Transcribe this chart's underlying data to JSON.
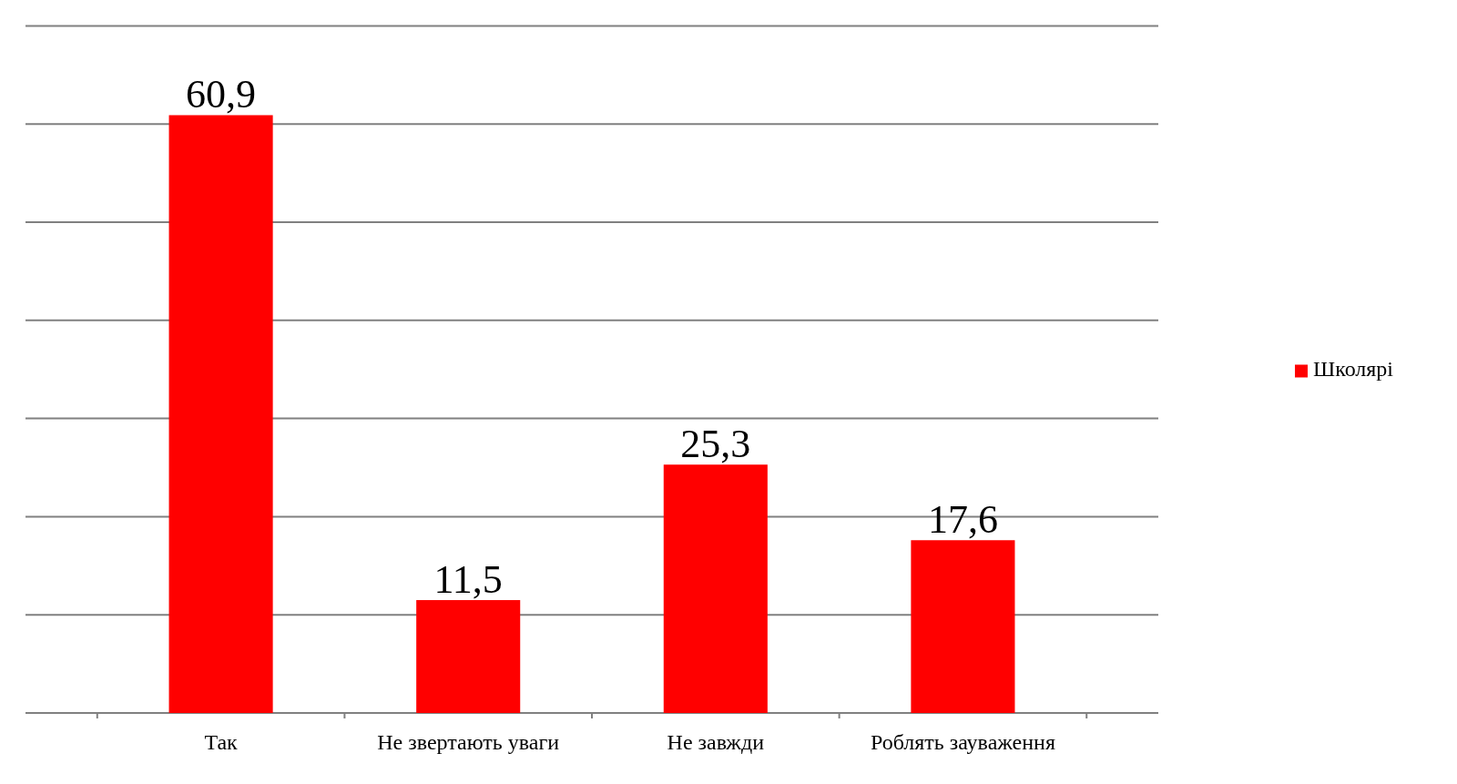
{
  "chart_data": {
    "type": "bar",
    "categories": [
      "Так",
      "Не звертають уваги",
      "Не завжди",
      "Роблять зауваження"
    ],
    "series": [
      {
        "name": "Школярі",
        "color": "#ff0000",
        "values": [
          60.9,
          11.5,
          25.3,
          17.6
        ],
        "value_labels": [
          "60,9",
          "11,5",
          "25,3",
          "17,6"
        ]
      }
    ],
    "tick_labels": "x",
    "grid": "y",
    "legend": "right"
  }
}
